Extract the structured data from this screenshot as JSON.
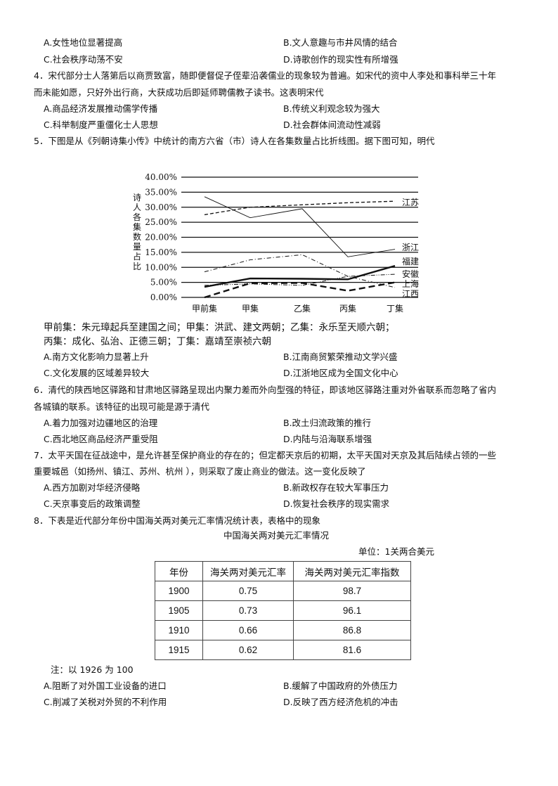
{
  "q3_options": {
    "A": "A.女性地位显著提高",
    "B": "B.文人意趣与市井风情的结合",
    "C": "C.社会秩序动荡不安",
    "D": "D.诗歌创作的现实性有所增强"
  },
  "q4": {
    "stem_line1": "4．宋代部分士人落第后以商贾致富，随即便督促子侄辈沿袭儒业的现象较为普遍。如宋代的资中人李处和事科举三十年",
    "stem_line2": "而未能如愿，只好外出行商，大获成功后即延师聘儒教子读书。这表明宋代",
    "options": {
      "A": "A.商品经济发展推动儒学传播",
      "B": "B.传统义利观念较为强大",
      "C": "C.科举制度严重僵化士人思想",
      "D": "D.社会群体间流动性减弱"
    }
  },
  "q5": {
    "stem": "5．下图是从《列朝诗集小传》中统计的南方六省（市）诗人在各集数量占比折线图。据下图可知，明代",
    "note_line1": "甲前集：朱元璋起兵至建国之间；甲集：洪武、建文两朝；乙集：永乐至天顺六朝；",
    "note_line2": "丙集：成化、弘治、正德三朝；丁集：嘉靖至崇祯六朝",
    "options": {
      "A": "A.南方文化影响力显著上升",
      "B": "B.江南商贸繁荣推动文学兴盛",
      "C": "C.文化发展的区域差异较大",
      "D": "D.江浙地区成为全国文化中心"
    }
  },
  "chart_data": {
    "type": "line",
    "ylabel": "诗人各集数量占比",
    "categories": [
      "甲前集",
      "甲集",
      "乙集",
      "丙集",
      "丁集"
    ],
    "y_ticks": [
      "0.00%",
      "5.00%",
      "10.00%",
      "15.00%",
      "20.00%",
      "25.00%",
      "30.00%",
      "35.00%",
      "40.00%"
    ],
    "ylim": [
      0,
      40
    ],
    "grid": true,
    "series": [
      {
        "name": "江苏",
        "values": [
          27.5,
          30,
          30.8,
          31.5,
          32
        ],
        "style": "dashed"
      },
      {
        "name": "浙江",
        "values": [
          33.5,
          26.5,
          29.5,
          13.5,
          16
        ],
        "style": "thin-solid"
      },
      {
        "name": "福建",
        "values": [
          3.5,
          6.3,
          6.2,
          6,
          10.5
        ],
        "style": "thick-solid"
      },
      {
        "name": "安徽",
        "values": [
          4,
          4.5,
          4,
          7,
          7.7
        ],
        "style": "dash-dot-dot"
      },
      {
        "name": "上海",
        "values": [
          0,
          4.7,
          4.8,
          2.2,
          5
        ],
        "style": "thick-dashed"
      },
      {
        "name": "江西",
        "values": [
          8.5,
          12.5,
          14.2,
          7,
          3.3
        ],
        "style": "dash-dot"
      }
    ]
  },
  "q6": {
    "stem_line1": "6．清代的陕西地区驿路和甘肃地区驿路呈现出内聚力差而外向型强的特征，即该地区驿路注重对外省联系而忽略了省内",
    "stem_line2": "各城镇的联系。该特征的出现可能是源于清代",
    "options": {
      "A": "A.着力加强对边疆地区的治理",
      "B": "B.改土归流政策的推行",
      "C": "C.西北地区商品经济严重受阻",
      "D": "D.内陆与沿海联系增强"
    }
  },
  "q7": {
    "stem_line1": "7．太平天国在征战途中，是允许甚至保护商业的存在的；但定都天京后的初期，太平天国对天京及其后陆续占领的一些",
    "stem_line2": "重要城邑（如扬州、镇江、苏州、杭州 ），则采取了废止商业的做法。这一变化反映了",
    "options": {
      "A": "A.西方加剧对华经济侵略",
      "B": "B.新政权存在较大军事压力",
      "C": "C.天京事变后的政策调整",
      "D": "D.恢复社会秩序的现实需求"
    }
  },
  "q8": {
    "stem": "8．下表是近代部分年份中国海关两对美元汇率情况统计表，表格中的现象",
    "table_title": "中国海关两对美元汇率情况",
    "unit": "单位：1关两合美元",
    "headers": [
      "年份",
      "海关两对美元汇率",
      "海关两对美元汇率指数"
    ],
    "rows": [
      [
        "1900",
        "0.75",
        "98.7"
      ],
      [
        "1905",
        "0.73",
        "96.1"
      ],
      [
        "1910",
        "0.66",
        "86.8"
      ],
      [
        "1915",
        "0.62",
        "81.6"
      ]
    ],
    "note": "注：以 1926 为 100",
    "options": {
      "A": "A.阻断了对外国工业设备的进口",
      "B": "B.缓解了中国政府的外债压力",
      "C": "C.削减了关税对外贸的不利作用",
      "D": "D.反映了西方经济危机的冲击"
    }
  }
}
